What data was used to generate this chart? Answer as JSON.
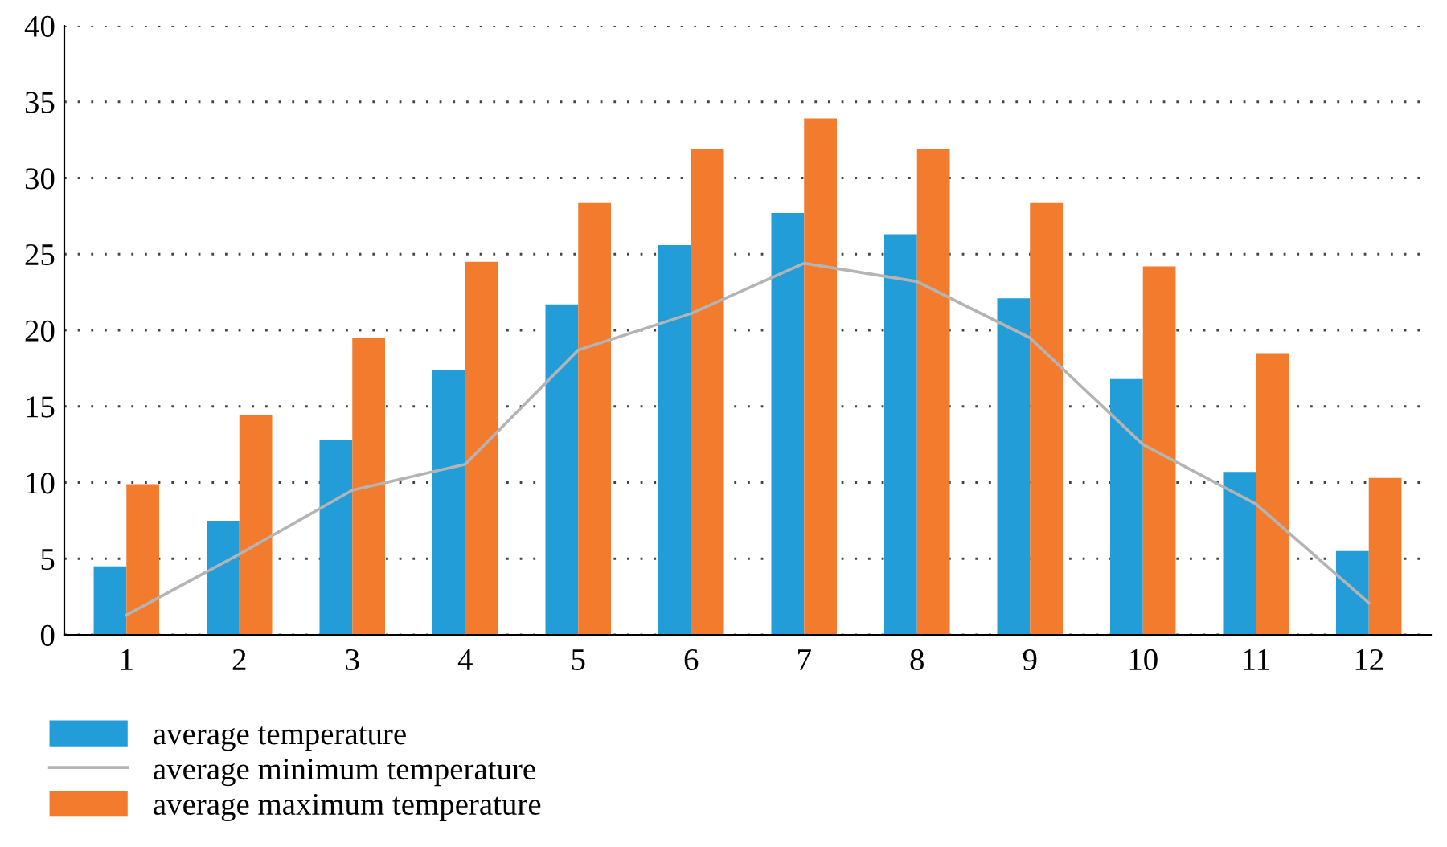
{
  "chart_data": {
    "type": "bar",
    "categories": [
      "1",
      "2",
      "3",
      "4",
      "5",
      "6",
      "7",
      "8",
      "9",
      "10",
      "11",
      "12"
    ],
    "series": [
      {
        "name": "average temperature",
        "color": "#229dd7",
        "values": [
          4.5,
          7.5,
          12.8,
          17.4,
          21.7,
          25.6,
          27.7,
          26.3,
          22.1,
          16.8,
          10.7,
          5.5
        ]
      },
      {
        "name": "average minimum temperature",
        "type": "line",
        "color": "#b4b4b4",
        "values": [
          1.3,
          5.3,
          9.5,
          11.2,
          18.7,
          21.1,
          24.4,
          23.2,
          19.5,
          12.5,
          8.6,
          2.1
        ]
      },
      {
        "name": "average maximum temperature",
        "color": "#f27b2e",
        "values": [
          9.9,
          14.4,
          19.5,
          24.5,
          28.4,
          31.9,
          33.9,
          31.9,
          28.4,
          24.2,
          18.5,
          10.3
        ]
      }
    ],
    "ylim": [
      0,
      40
    ],
    "yticks": [
      0,
      5,
      10,
      15,
      20,
      25,
      30,
      35,
      40
    ],
    "grid": "y",
    "legend": "bottom left",
    "marker": "none",
    "line_style": "solid"
  }
}
